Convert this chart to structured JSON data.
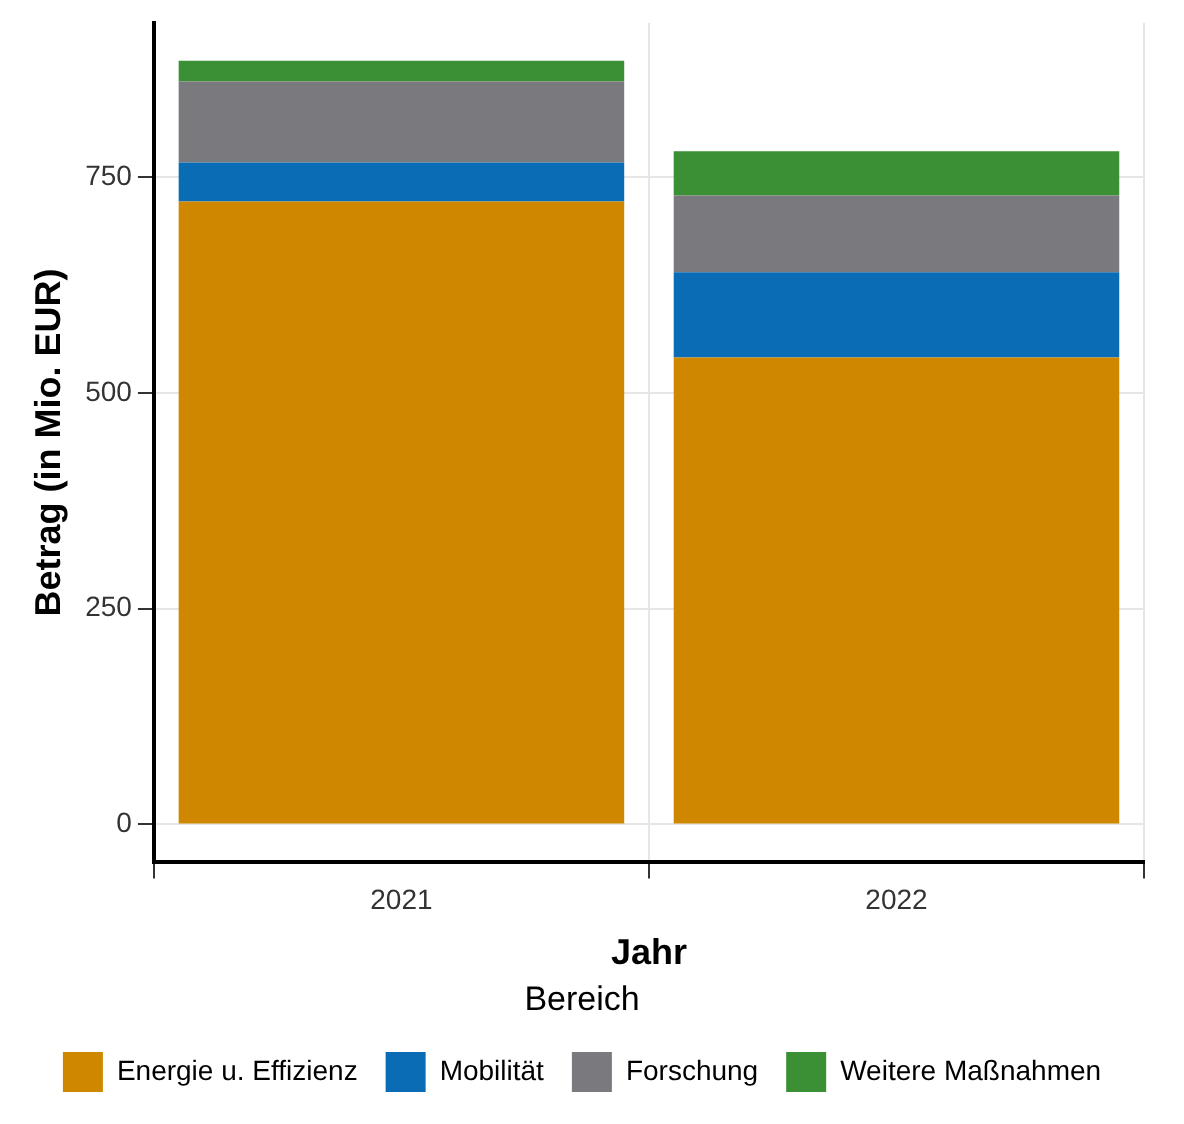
{
  "chart_data": {
    "type": "bar",
    "stacked": true,
    "xlabel": "Jahr",
    "ylabel": "Betrag (in Mio. EUR)",
    "legend_title": "Bereich",
    "legend": "bottom",
    "grid": true,
    "categories": [
      "2021",
      "2022"
    ],
    "series": [
      {
        "name": "Energie u. Effizienz",
        "color": "#d08700",
        "values": [
          722,
          541
        ]
      },
      {
        "name": "Mobilität",
        "color": "#0a6cb4",
        "values": [
          45,
          99
        ]
      },
      {
        "name": "Forschung",
        "color": "#7a797e",
        "values": [
          94,
          89
        ]
      },
      {
        "name": "Weitere Maßnahmen",
        "color": "#3b8f34",
        "values": [
          24,
          51
        ]
      }
    ],
    "ylim": [
      -44,
      929
    ],
    "yticks": [
      0,
      250,
      500,
      750
    ]
  }
}
